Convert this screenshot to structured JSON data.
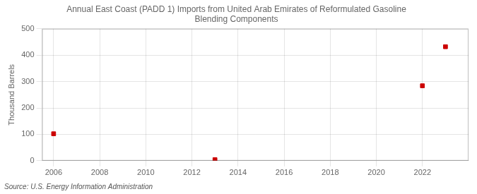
{
  "chart_data": {
    "type": "scatter",
    "title": "Annual East Coast (PADD 1) Imports from United Arab Emirates of Reformulated Gasoline\nBlending Components",
    "y_label": "Thousand Barrels",
    "annotation": "Source: U.S. Energy Information Administration",
    "x": [
      2006,
      2013,
      2022,
      2023
    ],
    "values": [
      102,
      4,
      284,
      432
    ],
    "color": "#cc0000",
    "marker": "square",
    "xlim": [
      2005.5,
      2024.0
    ],
    "xticks": [
      2006,
      2008,
      2010,
      2012,
      2014,
      2016,
      2018,
      2020,
      2022
    ],
    "ylim": [
      0,
      500
    ],
    "yticks": [
      0,
      100,
      200,
      300,
      400,
      500
    ],
    "grid": true
  }
}
